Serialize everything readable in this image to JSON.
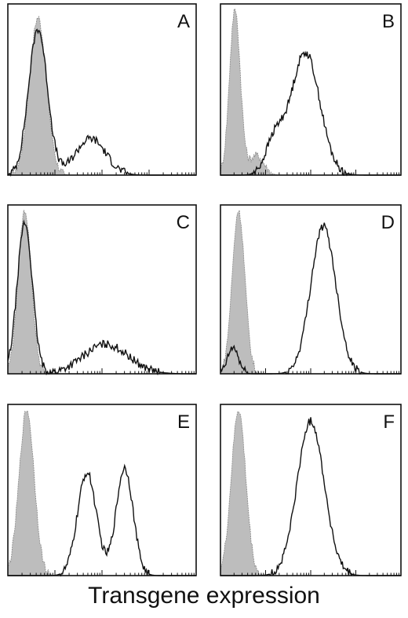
{
  "xlabel": "Transgene expression",
  "chart_data": [
    {
      "type": "area",
      "panel": "A",
      "xlim": [
        0,
        1
      ],
      "ylim": [
        0,
        1
      ],
      "x_scale": "log",
      "grid": false,
      "series": [
        {
          "style": "filled-gray",
          "peaks": [
            {
              "center": 0.16,
              "sd": 0.045,
              "height": 0.95
            }
          ]
        },
        {
          "style": "black-line",
          "peaks": [
            {
              "center": 0.16,
              "sd": 0.05,
              "height": 0.88
            },
            {
              "center": 0.44,
              "sd": 0.08,
              "height": 0.22
            }
          ]
        }
      ]
    },
    {
      "type": "area",
      "panel": "B",
      "xlim": [
        0,
        1
      ],
      "ylim": [
        0,
        1
      ],
      "x_scale": "log",
      "grid": false,
      "series": [
        {
          "style": "filled-gray",
          "peaks": [
            {
              "center": 0.08,
              "sd": 0.03,
              "height": 1.0
            },
            {
              "center": 0.2,
              "sd": 0.04,
              "height": 0.12
            }
          ]
        },
        {
          "style": "black-line",
          "peaks": [
            {
              "center": 0.47,
              "sd": 0.08,
              "height": 0.74
            },
            {
              "center": 0.3,
              "sd": 0.05,
              "height": 0.2
            }
          ]
        }
      ]
    },
    {
      "type": "area",
      "panel": "C",
      "xlim": [
        0,
        1
      ],
      "ylim": [
        0,
        1
      ],
      "x_scale": "log",
      "grid": false,
      "series": [
        {
          "style": "filled-gray",
          "peaks": [
            {
              "center": 0.09,
              "sd": 0.035,
              "height": 1.0
            }
          ]
        },
        {
          "style": "black-line",
          "peaks": [
            {
              "center": 0.09,
              "sd": 0.04,
              "height": 0.92
            },
            {
              "center": 0.52,
              "sd": 0.12,
              "height": 0.18
            }
          ]
        }
      ]
    },
    {
      "type": "area",
      "panel": "D",
      "xlim": [
        0,
        1
      ],
      "ylim": [
        0,
        1
      ],
      "x_scale": "log",
      "grid": false,
      "series": [
        {
          "style": "filled-gray",
          "peaks": [
            {
              "center": 0.1,
              "sd": 0.035,
              "height": 1.0
            }
          ]
        },
        {
          "style": "black-line",
          "peaks": [
            {
              "center": 0.07,
              "sd": 0.03,
              "height": 0.16
            },
            {
              "center": 0.57,
              "sd": 0.07,
              "height": 0.9
            }
          ]
        }
      ]
    },
    {
      "type": "area",
      "panel": "E",
      "xlim": [
        0,
        1
      ],
      "ylim": [
        0,
        1
      ],
      "x_scale": "log",
      "grid": false,
      "series": [
        {
          "style": "filled-gray",
          "peaks": [
            {
              "center": 0.1,
              "sd": 0.04,
              "height": 1.0
            }
          ]
        },
        {
          "style": "black-line",
          "peaks": [
            {
              "center": 0.42,
              "sd": 0.05,
              "height": 0.62
            },
            {
              "center": 0.62,
              "sd": 0.045,
              "height": 0.65
            }
          ]
        }
      ]
    },
    {
      "type": "area",
      "panel": "F",
      "xlim": [
        0,
        1
      ],
      "ylim": [
        0,
        1
      ],
      "x_scale": "log",
      "grid": false,
      "series": [
        {
          "style": "filled-gray",
          "peaks": [
            {
              "center": 0.1,
              "sd": 0.04,
              "height": 1.0
            }
          ]
        },
        {
          "style": "black-line",
          "peaks": [
            {
              "center": 0.5,
              "sd": 0.075,
              "height": 0.93
            }
          ]
        }
      ]
    }
  ]
}
